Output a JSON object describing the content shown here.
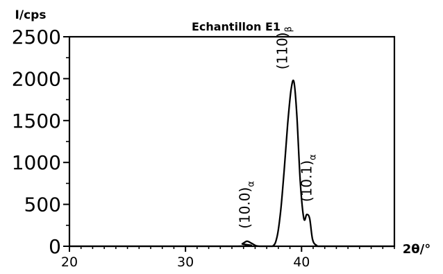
{
  "chart_data": {
    "type": "line",
    "title": "Echantillon E1",
    "ylabel": "I/cps",
    "xlabel": "2θ/°",
    "xlim": [
      20,
      48
    ],
    "ylim": [
      0,
      2500
    ],
    "x_ticks": [
      "20",
      "30",
      "40"
    ],
    "y_ticks": [
      "0",
      "500",
      "1000",
      "1500",
      "2000",
      "2500"
    ],
    "grid": false,
    "series": [
      {
        "x": [
          20,
          34.5,
          34.9,
          35.3,
          35.7,
          36.1,
          36.5,
          37.5,
          37.9,
          38.2,
          38.5,
          38.8,
          39.1,
          39.35,
          39.6,
          39.9,
          40.2,
          40.45,
          40.7,
          40.95,
          41.3,
          41.8,
          48
        ],
        "y": [
          0,
          0,
          30,
          60,
          35,
          5,
          0,
          0,
          120,
          420,
          900,
          1450,
          1870,
          1960,
          1550,
          750,
          330,
          380,
          330,
          80,
          10,
          0,
          0
        ]
      }
    ],
    "annotations": [
      {
        "label": "(10.0)",
        "sub": "α",
        "x": 35.3,
        "y": 60
      },
      {
        "label": "(110)",
        "sub": "β",
        "x": 39.35,
        "y": 1960
      },
      {
        "label": "(10.1)",
        "sub": "α",
        "x": 40.6,
        "y": 380
      }
    ]
  }
}
